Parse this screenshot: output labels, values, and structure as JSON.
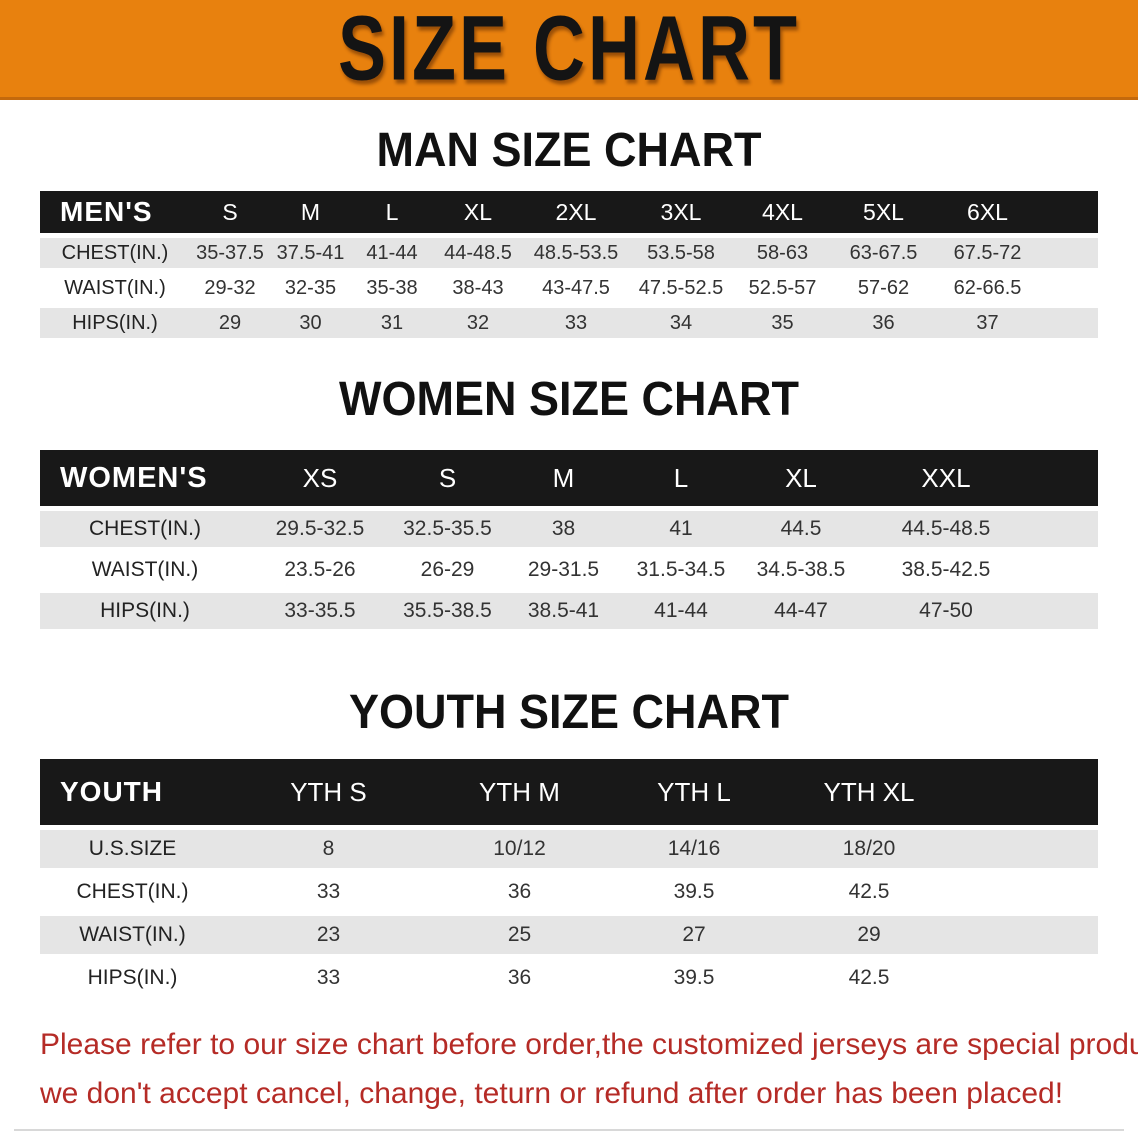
{
  "banner": {
    "title": "SIZE CHART",
    "bg_color": "#E8810E",
    "text_color": "#141414"
  },
  "sections": [
    {
      "heading": "MAN SIZE CHART",
      "table": {
        "label": "MEN'S",
        "columns": [
          "S",
          "M",
          "L",
          "XL",
          "2XL",
          "3XL",
          "4XL",
          "5XL",
          "6XL"
        ],
        "rows": [
          {
            "label": "CHEST(IN.)",
            "values": [
              "35-37.5",
              "37.5-41",
              "41-44",
              "44-48.5",
              "48.5-53.5",
              "53.5-58",
              "58-63",
              "63-67.5",
              "67.5-72"
            ]
          },
          {
            "label": "WAIST(IN.)",
            "values": [
              "29-32",
              "32-35",
              "35-38",
              "38-43",
              "43-47.5",
              "47.5-52.5",
              "52.5-57",
              "57-62",
              "62-66.5"
            ]
          },
          {
            "label": "HIPS(IN.)",
            "values": [
              "29",
              "30",
              "31",
              "32",
              "33",
              "34",
              "35",
              "36",
              "37"
            ]
          }
        ]
      }
    },
    {
      "heading": "WOMEN SIZE CHART",
      "table": {
        "label": "WOMEN'S",
        "columns": [
          "XS",
          "S",
          "M",
          "L",
          "XL",
          "XXL"
        ],
        "rows": [
          {
            "label": "CHEST(IN.)",
            "values": [
              "29.5-32.5",
              "32.5-35.5",
              "38",
              "41",
              "44.5",
              "44.5-48.5"
            ]
          },
          {
            "label": "WAIST(IN.)",
            "values": [
              "23.5-26",
              "26-29",
              "29-31.5",
              "31.5-34.5",
              "34.5-38.5",
              "38.5-42.5"
            ]
          },
          {
            "label": "HIPS(IN.)",
            "values": [
              "33-35.5",
              "35.5-38.5",
              "38.5-41",
              "41-44",
              "44-47",
              "47-50"
            ]
          }
        ]
      }
    },
    {
      "heading": "YOUTH SIZE CHART",
      "table": {
        "label": "YOUTH",
        "columns": [
          "YTH S",
          "YTH M",
          "YTH L",
          "YTH XL"
        ],
        "rows": [
          {
            "label": "U.S.SIZE",
            "values": [
              "8",
              "10/12",
              "14/16",
              "18/20"
            ]
          },
          {
            "label": "CHEST(IN.)",
            "values": [
              "33",
              "36",
              "39.5",
              "42.5"
            ]
          },
          {
            "label": "WAIST(IN.)",
            "values": [
              "23",
              "25",
              "27",
              "29"
            ]
          },
          {
            "label": "HIPS(IN.)",
            "values": [
              "33",
              "36",
              "39.5",
              "42.5"
            ]
          }
        ]
      }
    }
  ],
  "disclaimer": {
    "line1": "Please refer to our size chart before order,the customized jerseys are special products,",
    "line2": "we don't accept cancel, change, teturn or refund after order has been placed!",
    "color": "#B52B26"
  },
  "colors": {
    "banner_orange": "#E8810E",
    "table_header_black": "#181818",
    "row_gray": "#E5E5E5",
    "disclaimer_red": "#B52B26"
  }
}
